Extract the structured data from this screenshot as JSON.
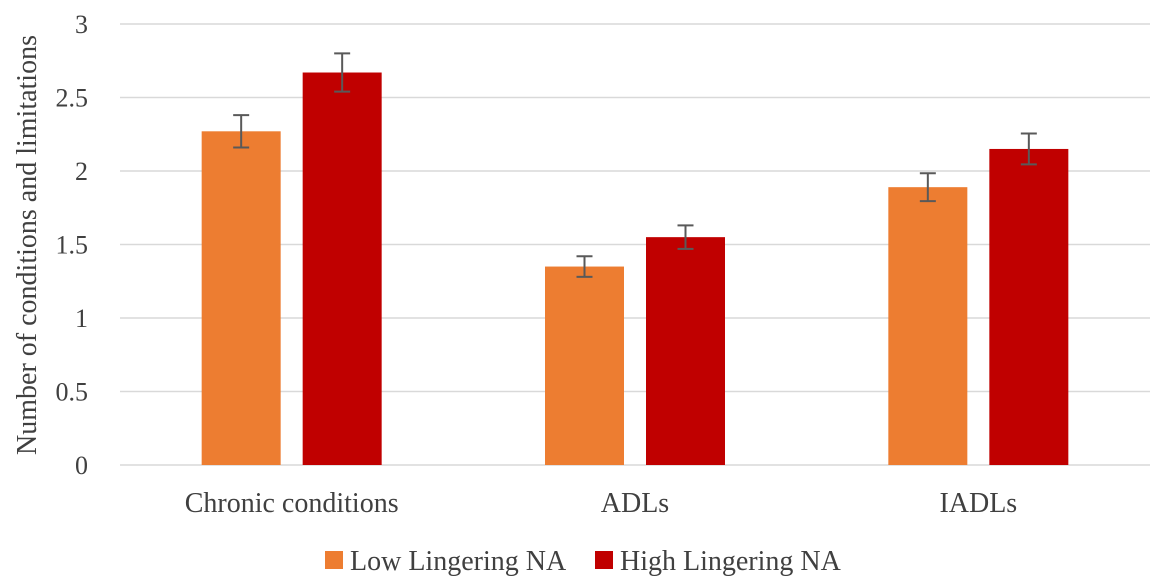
{
  "chart_data": {
    "type": "bar",
    "title": "",
    "xlabel": "",
    "ylabel": "Number of conditions and limitations",
    "ylim": [
      0,
      3
    ],
    "yticks": [
      0,
      0.5,
      1,
      1.5,
      2,
      2.5,
      3
    ],
    "ytick_labels": [
      "0",
      "0.5",
      "1",
      "1.5",
      "2",
      "2.5",
      "3"
    ],
    "grid": true,
    "legend_position": "bottom",
    "categories": [
      "Chronic conditions",
      "ADLs",
      "IADLs"
    ],
    "series": [
      {
        "name": "Low Lingering NA",
        "color": "#ed7d31",
        "values": [
          2.27,
          1.35,
          1.89
        ],
        "errors": [
          0.11,
          0.07,
          0.095
        ]
      },
      {
        "name": "High Lingering NA",
        "color": "#c00000",
        "values": [
          2.67,
          1.55,
          2.15
        ],
        "errors": [
          0.13,
          0.08,
          0.105
        ]
      }
    ]
  }
}
